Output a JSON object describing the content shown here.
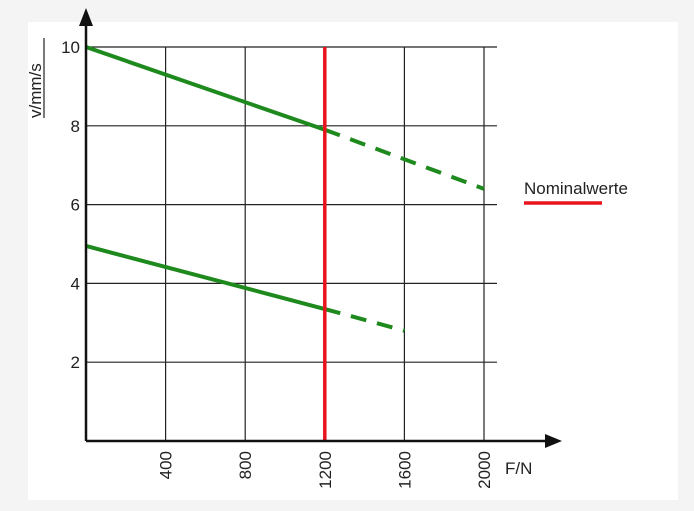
{
  "chart_data": {
    "type": "line",
    "xlabel": "F/N",
    "ylabel": "v/mm/s",
    "xlim": [
      0,
      2000
    ],
    "ylim": [
      0,
      10
    ],
    "x_ticks": [
      400,
      800,
      1200,
      1600,
      2000
    ],
    "y_ticks": [
      2,
      4,
      6,
      8,
      10
    ],
    "grid": true,
    "series": [
      {
        "id": "upper",
        "color": "#1e8a1e",
        "solid": [
          [
            0,
            10
          ],
          [
            1200,
            7.9
          ]
        ],
        "dashed": [
          [
            1200,
            7.9
          ],
          [
            2000,
            6.4
          ]
        ]
      },
      {
        "id": "lower",
        "color": "#1e8a1e",
        "solid": [
          [
            0,
            4.95
          ],
          [
            1200,
            3.35
          ]
        ],
        "dashed": [
          [
            1200,
            3.35
          ],
          [
            1600,
            2.8
          ]
        ]
      }
    ],
    "reference_lines": [
      {
        "x": 1200,
        "color": "#e8141e",
        "legend": "Nominalwerte"
      }
    ],
    "legend_position": "right"
  }
}
